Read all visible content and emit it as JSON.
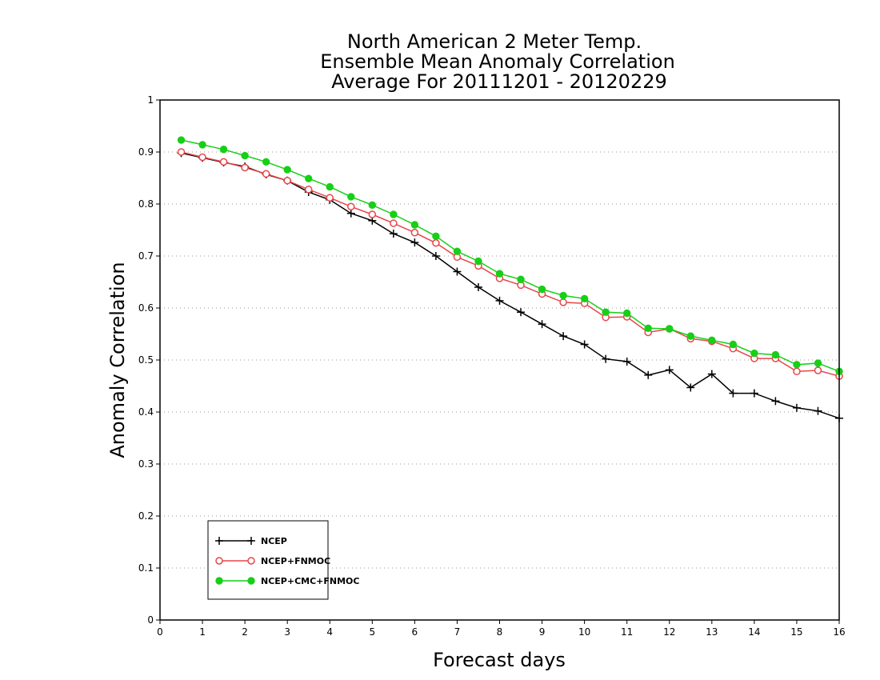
{
  "chart_data": {
    "type": "line",
    "title": [
      "North American 2 Meter Temp.",
      "Ensemble Mean Anomaly Correlation",
      "Average For 20111201 - 20120229"
    ],
    "xlabel": "Forecast days",
    "ylabel": "Anomaly Correlation",
    "xlim": [
      0,
      16
    ],
    "ylim": [
      0,
      1
    ],
    "x_ticks": [
      "0",
      "1",
      "2",
      "3",
      "4",
      "5",
      "6",
      "7",
      "8",
      "9",
      "10",
      "11",
      "12",
      "13",
      "14",
      "15",
      "16"
    ],
    "y_ticks": [
      "0",
      "0.1",
      "0.2",
      "0.3",
      "0.4",
      "0.5",
      "0.6",
      "0.7",
      "0.8",
      "0.9",
      "1"
    ],
    "grid": "horizontal dotted",
    "legend_position": "bottom-left",
    "x": [
      0.5,
      1,
      1.5,
      2,
      2.5,
      3,
      3.5,
      4,
      4.5,
      5,
      5.5,
      6,
      6.5,
      7,
      7.5,
      8,
      8.5,
      9,
      9.5,
      10,
      10.5,
      11,
      11.5,
      12,
      12.5,
      13,
      13.5,
      14,
      14.5,
      15,
      15.5,
      16
    ],
    "series": [
      {
        "name": "NCEP",
        "color": "#000000",
        "marker": "plus",
        "values": [
          0.898,
          0.889,
          0.88,
          0.872,
          0.857,
          0.845,
          0.823,
          0.808,
          0.782,
          0.768,
          0.743,
          0.726,
          0.7,
          0.67,
          0.64,
          0.614,
          0.592,
          0.569,
          0.546,
          0.53,
          0.502,
          0.497,
          0.471,
          0.481,
          0.447,
          0.473,
          0.436,
          0.436,
          0.421,
          0.408,
          0.402,
          0.388
        ]
      },
      {
        "name": "NCEP+FNMOC",
        "color": "#e8454a",
        "marker": "open-circle",
        "values": [
          0.9,
          0.89,
          0.881,
          0.87,
          0.858,
          0.845,
          0.828,
          0.812,
          0.795,
          0.78,
          0.763,
          0.745,
          0.725,
          0.698,
          0.681,
          0.657,
          0.644,
          0.627,
          0.611,
          0.609,
          0.582,
          0.583,
          0.553,
          0.56,
          0.541,
          0.536,
          0.522,
          0.503,
          0.503,
          0.478,
          0.48,
          0.469
        ]
      },
      {
        "name": "NCEP+CMC+FNMOC",
        "color": "#17cf17",
        "marker": "filled-circle",
        "values": [
          0.923,
          0.914,
          0.905,
          0.893,
          0.881,
          0.866,
          0.849,
          0.833,
          0.814,
          0.798,
          0.78,
          0.76,
          0.738,
          0.709,
          0.69,
          0.666,
          0.655,
          0.636,
          0.624,
          0.618,
          0.592,
          0.59,
          0.561,
          0.56,
          0.546,
          0.538,
          0.53,
          0.513,
          0.51,
          0.491,
          0.494,
          0.478
        ]
      }
    ]
  }
}
